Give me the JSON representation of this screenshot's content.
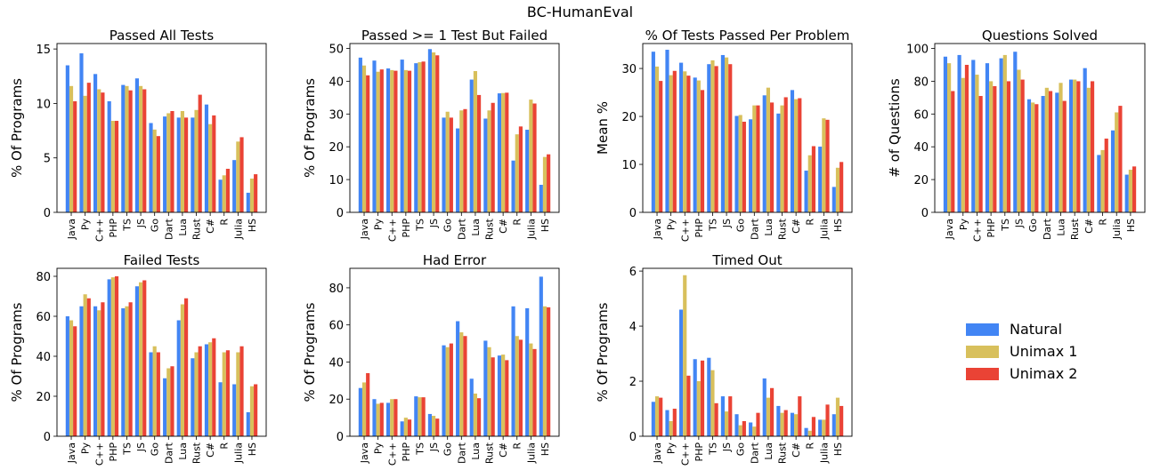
{
  "figure": {
    "suptitle": "BC-HumanEval"
  },
  "colors": {
    "Natural": "#4285f4",
    "Unimax 1": "#d8c05c",
    "Unimax 2": "#ea4335"
  },
  "legend": {
    "placement": "right, second row (empty fourth subplot slot)",
    "entries": [
      "Natural",
      "Unimax 1",
      "Unimax 2"
    ]
  },
  "chart_data": [
    {
      "type": "bar",
      "title": "Passed All Tests",
      "xlabel": "",
      "ylabel": "% Of Programs",
      "ylim": [
        0,
        15.5
      ],
      "yticks": [
        0,
        5,
        10,
        15
      ],
      "grid": false,
      "categories": [
        "Java",
        "Py",
        "C++",
        "PHP",
        "TS",
        "JS",
        "Go",
        "Dart",
        "Lua",
        "Rust",
        "C#",
        "R",
        "Julia",
        "HS"
      ],
      "series": [
        {
          "name": "Natural",
          "values": [
            13.5,
            14.6,
            12.7,
            10.2,
            11.7,
            12.3,
            8.2,
            8.8,
            8.7,
            8.7,
            9.9,
            3.0,
            4.8,
            1.8
          ]
        },
        {
          "name": "Unimax 1",
          "values": [
            11.6,
            10.7,
            11.3,
            8.4,
            11.6,
            11.6,
            7.6,
            9.1,
            9.3,
            9.4,
            8.1,
            3.4,
            6.5,
            3.1
          ]
        },
        {
          "name": "Unimax 2",
          "values": [
            10.2,
            11.9,
            11.0,
            8.4,
            11.2,
            11.3,
            7.0,
            9.3,
            8.7,
            10.8,
            8.9,
            4.0,
            6.9,
            3.5
          ]
        }
      ]
    },
    {
      "type": "bar",
      "title": "Passed >= 1 Test But Failed",
      "xlabel": "",
      "ylabel": "% Of Programs",
      "ylim": [
        0,
        51.5
      ],
      "yticks": [
        0,
        10,
        20,
        30,
        40,
        50
      ],
      "grid": false,
      "categories": [
        "Java",
        "Py",
        "C++",
        "PHP",
        "TS",
        "JS",
        "Go",
        "Dart",
        "Lua",
        "Rust",
        "C#",
        "R",
        "Julia",
        "HS"
      ],
      "series": [
        {
          "name": "Natural",
          "values": [
            47.2,
            46.3,
            43.9,
            46.6,
            45.5,
            49.8,
            28.9,
            25.6,
            40.5,
            28.6,
            36.3,
            15.8,
            25.2,
            8.4
          ]
        },
        {
          "name": "Unimax 1",
          "values": [
            44.8,
            42.9,
            43.4,
            43.4,
            45.8,
            48.8,
            30.7,
            31.1,
            43.1,
            31.1,
            36.4,
            23.8,
            34.4,
            16.9
          ]
        },
        {
          "name": "Unimax 2",
          "values": [
            41.8,
            43.6,
            43.2,
            43.2,
            46.0,
            47.9,
            28.9,
            31.5,
            35.8,
            33.4,
            36.5,
            26.2,
            33.2,
            17.7
          ]
        }
      ]
    },
    {
      "type": "bar",
      "title": "% Of Tests Passed Per Problem",
      "xlabel": "",
      "ylabel": "Mean %",
      "ylim": [
        0,
        35.2
      ],
      "yticks": [
        0,
        10,
        20,
        30
      ],
      "grid": false,
      "categories": [
        "Java",
        "Py",
        "C++",
        "PHP",
        "TS",
        "JS",
        "Go",
        "Dart",
        "Lua",
        "Rust",
        "C#",
        "R",
        "Julia",
        "HS"
      ],
      "series": [
        {
          "name": "Natural",
          "values": [
            33.5,
            33.9,
            31.2,
            28.1,
            30.9,
            32.8,
            20.1,
            19.4,
            24.4,
            20.6,
            25.5,
            8.7,
            13.7,
            5.3
          ]
        },
        {
          "name": "Unimax 1",
          "values": [
            30.4,
            28.6,
            29.4,
            27.5,
            31.7,
            32.3,
            20.3,
            22.3,
            26.0,
            22.3,
            23.6,
            11.9,
            19.6,
            9.3
          ]
        },
        {
          "name": "Unimax 2",
          "values": [
            27.4,
            29.5,
            28.5,
            25.5,
            30.5,
            30.9,
            18.9,
            22.3,
            22.9,
            24.0,
            23.8,
            13.8,
            19.3,
            10.5
          ]
        }
      ]
    },
    {
      "type": "bar",
      "title": "Questions Solved",
      "xlabel": "",
      "ylabel": "# of Questions",
      "ylim": [
        0,
        103
      ],
      "yticks": [
        0,
        20,
        40,
        60,
        80,
        100
      ],
      "grid": false,
      "categories": [
        "Java",
        "Py",
        "C++",
        "PHP",
        "TS",
        "JS",
        "Go",
        "Dart",
        "Lua",
        "Rust",
        "C#",
        "R",
        "Julia",
        "HS"
      ],
      "series": [
        {
          "name": "Natural",
          "values": [
            95,
            96,
            93,
            91,
            94,
            98,
            69,
            71,
            73,
            81,
            88,
            35,
            50,
            23
          ]
        },
        {
          "name": "Unimax 1",
          "values": [
            91,
            82,
            84,
            80,
            96,
            87,
            67,
            76,
            79,
            81,
            76,
            38,
            61,
            26
          ]
        },
        {
          "name": "Unimax 2",
          "values": [
            74,
            90,
            71,
            77,
            80,
            81,
            66,
            74,
            68,
            80,
            80,
            45,
            65,
            28
          ]
        }
      ]
    },
    {
      "type": "bar",
      "title": "Failed Tests",
      "xlabel": "",
      "ylabel": "% Of Programs",
      "ylim": [
        0,
        84
      ],
      "yticks": [
        0,
        20,
        40,
        60,
        80
      ],
      "grid": false,
      "categories": [
        "Java",
        "Py",
        "C++",
        "PHP",
        "TS",
        "JS",
        "Go",
        "Dart",
        "Lua",
        "Rust",
        "C#",
        "R",
        "Julia",
        "HS"
      ],
      "series": [
        {
          "name": "Natural",
          "values": [
            60.0,
            65.0,
            65.0,
            78.5,
            64.0,
            75.0,
            42.0,
            29.0,
            58.0,
            39.0,
            46.0,
            27.0,
            26.0,
            12.0
          ]
        },
        {
          "name": "Unimax 1",
          "values": [
            58.0,
            71.0,
            63.0,
            79.5,
            65.0,
            77.0,
            45.0,
            34.0,
            66.0,
            42.0,
            47.0,
            42.0,
            42.0,
            25.0
          ]
        },
        {
          "name": "Unimax 2",
          "values": [
            55.0,
            69.0,
            67.0,
            80.0,
            67.0,
            78.0,
            42.0,
            35.0,
            69.0,
            45.0,
            49.0,
            43.0,
            45.0,
            26.0
          ]
        }
      ]
    },
    {
      "type": "bar",
      "title": "Had Error",
      "xlabel": "",
      "ylabel": "% Of Programs",
      "ylim": [
        0,
        90.5
      ],
      "yticks": [
        0,
        20,
        40,
        60,
        80
      ],
      "grid": false,
      "categories": [
        "Java",
        "Py",
        "C++",
        "PHP",
        "TS",
        "JS",
        "Go",
        "Dart",
        "Lua",
        "Rust",
        "C#",
        "R",
        "Julia",
        "HS"
      ],
      "series": [
        {
          "name": "Natural",
          "values": [
            26.0,
            20.0,
            18.0,
            8.0,
            21.5,
            12.0,
            49.0,
            62.0,
            31.0,
            51.5,
            43.5,
            70.0,
            69.0,
            86.0
          ]
        },
        {
          "name": "Unimax 1",
          "values": [
            29.0,
            17.5,
            20.0,
            10.0,
            21.0,
            11.0,
            48.0,
            56.0,
            23.0,
            48.0,
            44.0,
            54.0,
            50.0,
            70.0
          ]
        },
        {
          "name": "Unimax 2",
          "values": [
            34.0,
            18.0,
            20.0,
            9.0,
            21.0,
            9.5,
            50.0,
            54.0,
            20.5,
            42.5,
            41.0,
            52.0,
            47.0,
            69.5
          ]
        }
      ]
    },
    {
      "type": "bar",
      "title": "Timed Out",
      "xlabel": "",
      "ylabel": "% Of Programs",
      "ylim": [
        0,
        6.1
      ],
      "yticks": [
        0,
        2,
        4,
        6
      ],
      "grid": false,
      "categories": [
        "Java",
        "Py",
        "C++",
        "PHP",
        "TS",
        "JS",
        "Go",
        "Dart",
        "Lua",
        "Rust",
        "C#",
        "R",
        "Julia",
        "HS"
      ],
      "series": [
        {
          "name": "Natural",
          "values": [
            1.25,
            0.95,
            4.6,
            2.8,
            2.85,
            1.45,
            0.8,
            0.5,
            2.1,
            1.1,
            0.85,
            0.3,
            0.6,
            0.8
          ]
        },
        {
          "name": "Unimax 1",
          "values": [
            1.45,
            0.55,
            5.85,
            2.0,
            2.4,
            0.9,
            0.4,
            0.35,
            1.4,
            0.85,
            0.8,
            0.2,
            0.6,
            1.4
          ]
        },
        {
          "name": "Unimax 2",
          "values": [
            1.4,
            1.0,
            2.2,
            2.75,
            1.2,
            1.45,
            0.55,
            0.85,
            1.75,
            0.95,
            1.45,
            0.7,
            1.15,
            1.1
          ]
        }
      ]
    }
  ]
}
